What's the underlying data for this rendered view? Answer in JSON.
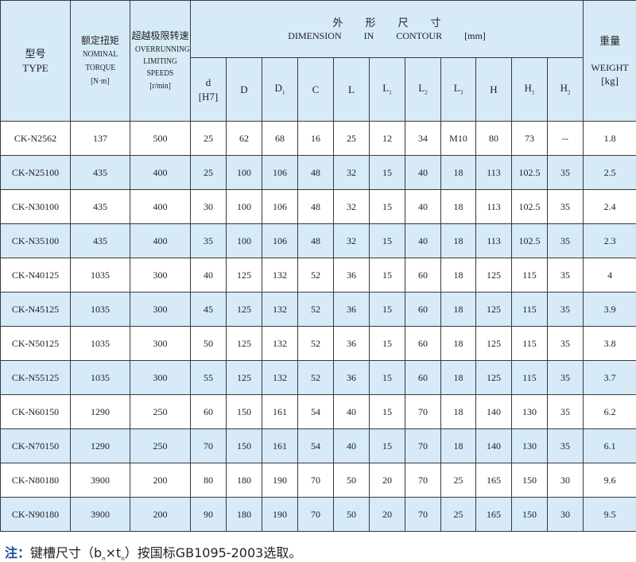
{
  "header": {
    "type": {
      "cn": "型号",
      "en": "TYPE"
    },
    "torque": {
      "cn": "额定扭矩",
      "en1": "NOMINAL",
      "en2": "TORQUE",
      "unit": "[N·m]"
    },
    "speed": {
      "cn": "超越极限转速",
      "en1": "OVERRUNNING",
      "en2": "LIMITING SPEEDS",
      "unit": "[r/min]"
    },
    "dimension": {
      "cn": [
        "外",
        "形",
        "尺",
        "寸"
      ],
      "en": [
        "DIMENSION",
        "IN",
        "CONTOUR",
        "[mm]"
      ]
    },
    "weight": {
      "cn": "重量",
      "en": "WEIGHT",
      "unit": "[kg]"
    },
    "dim_cols": [
      {
        "base": "d",
        "sub": "",
        "extra": "[H7]"
      },
      {
        "base": "D",
        "sub": ""
      },
      {
        "base": "D",
        "sub": "1"
      },
      {
        "base": "C",
        "sub": ""
      },
      {
        "base": "L",
        "sub": ""
      },
      {
        "base": "L",
        "sub": "1"
      },
      {
        "base": "L",
        "sub": "2"
      },
      {
        "base": "L",
        "sub": "3"
      },
      {
        "base": "H",
        "sub": ""
      },
      {
        "base": "H",
        "sub": "1"
      },
      {
        "base": "H",
        "sub": "2"
      }
    ]
  },
  "rows": [
    [
      "CK-N2562",
      "137",
      "500",
      "25",
      "62",
      "68",
      "16",
      "25",
      "12",
      "34",
      "M10",
      "80",
      "73",
      "--",
      "1.8"
    ],
    [
      "CK-N25100",
      "435",
      "400",
      "25",
      "100",
      "106",
      "48",
      "32",
      "15",
      "40",
      "18",
      "113",
      "102.5",
      "35",
      "2.5"
    ],
    [
      "CK-N30100",
      "435",
      "400",
      "30",
      "100",
      "106",
      "48",
      "32",
      "15",
      "40",
      "18",
      "113",
      "102.5",
      "35",
      "2.4"
    ],
    [
      "CK-N35100",
      "435",
      "400",
      "35",
      "100",
      "106",
      "48",
      "32",
      "15",
      "40",
      "18",
      "113",
      "102.5",
      "35",
      "2.3"
    ],
    [
      "CK-N40125",
      "1035",
      "300",
      "40",
      "125",
      "132",
      "52",
      "36",
      "15",
      "60",
      "18",
      "125",
      "115",
      "35",
      "4"
    ],
    [
      "CK-N45125",
      "1035",
      "300",
      "45",
      "125",
      "132",
      "52",
      "36",
      "15",
      "60",
      "18",
      "125",
      "115",
      "35",
      "3.9"
    ],
    [
      "CK-N50125",
      "1035",
      "300",
      "50",
      "125",
      "132",
      "52",
      "36",
      "15",
      "60",
      "18",
      "125",
      "115",
      "35",
      "3.8"
    ],
    [
      "CK-N55125",
      "1035",
      "300",
      "55",
      "125",
      "132",
      "52",
      "36",
      "15",
      "60",
      "18",
      "125",
      "115",
      "35",
      "3.7"
    ],
    [
      "CK-N60150",
      "1290",
      "250",
      "60",
      "150",
      "161",
      "54",
      "40",
      "15",
      "70",
      "18",
      "140",
      "130",
      "35",
      "6.2"
    ],
    [
      "CK-N70150",
      "1290",
      "250",
      "70",
      "150",
      "161",
      "54",
      "40",
      "15",
      "70",
      "18",
      "140",
      "130",
      "35",
      "6.1"
    ],
    [
      "CK-N80180",
      "3900",
      "200",
      "80",
      "180",
      "190",
      "70",
      "50",
      "20",
      "70",
      "25",
      "165",
      "150",
      "30",
      "9.6"
    ],
    [
      "CK-N90180",
      "3900",
      "200",
      "90",
      "180",
      "190",
      "70",
      "50",
      "20",
      "70",
      "25",
      "165",
      "150",
      "30",
      "9.5"
    ]
  ],
  "note": {
    "label": "注：",
    "text1": "键槽尺寸（b",
    "sub1": "n",
    "text2": "×t",
    "sub2": "n",
    "text3": "）按国标GB1095-2003选取。"
  },
  "colors": {
    "header_bg": "#d6eaf7",
    "alt_row_bg": "#d6eaf7",
    "note_label": "#1a4f9c"
  }
}
